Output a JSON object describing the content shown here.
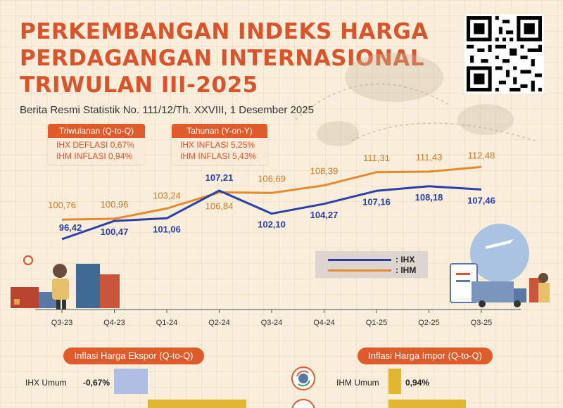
{
  "header": {
    "title_lines": [
      "PERKEMBANGAN INDEKS HARGA",
      "PERDAGANGAN INTERNASIONAL",
      "TRIWULAN III-2025"
    ],
    "subtitle": "Berita Resmi Statistik No. 111/12/Th. XXVIII, 1 Desember 2025"
  },
  "summary": {
    "qtq": {
      "title": "Triwulanan (Q-to-Q)",
      "line1": "IHX DEFLASI 0,67%",
      "line2": "IHM INFLASI 0,94%"
    },
    "yoy": {
      "title": "Tahunan (Y-on-Y)",
      "line1": "IHX INFLASI 5,25%",
      "line2": "IHM INFLASI 5,43%"
    }
  },
  "legend": {
    "ihx": ": IHX",
    "ihm": ": IHM"
  },
  "colors": {
    "ihx": "#2b3fa8",
    "ihm": "#e68a2e",
    "accent": "#df5b2a"
  },
  "chart_data": {
    "type": "line",
    "categories": [
      "Q3-23",
      "Q4-23",
      "Q1-24",
      "Q2-24",
      "Q3-24",
      "Q4-24",
      "Q1-25",
      "Q2-25",
      "Q3-25"
    ],
    "series": [
      {
        "name": "IHX",
        "values": [
          96.42,
          100.47,
          101.06,
          107.21,
          102.1,
          104.27,
          107.16,
          108.18,
          107.46
        ],
        "labels": [
          "96,42",
          "100,47",
          "101,06",
          "107,21",
          "102,10",
          "104,27",
          "107,16",
          "108,18",
          "107,46"
        ]
      },
      {
        "name": "IHM",
        "values": [
          100.76,
          100.96,
          103.24,
          106.84,
          106.69,
          108.39,
          111.31,
          111.43,
          112.48
        ],
        "labels": [
          "100,76",
          "100,96",
          "103,24",
          "106,84",
          "106,69",
          "108,39",
          "111,31",
          "111,43",
          "112,48"
        ]
      }
    ]
  },
  "bottom": {
    "export_title": "Inflasi Harga Ekspor (Q-to-Q)",
    "import_title": "Inflasi Harga Impor (Q-to-Q)",
    "ihx_label": "IHX Umum",
    "ihx_value": "-0,67%",
    "ihm_label": "IHM Umum",
    "ihm_value": "0,94%"
  }
}
